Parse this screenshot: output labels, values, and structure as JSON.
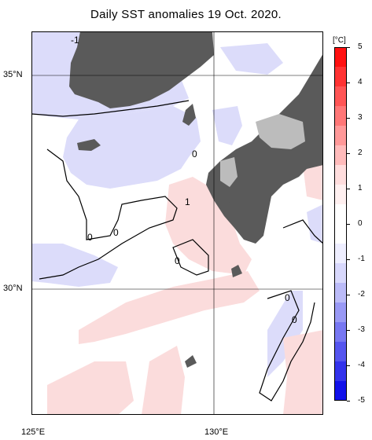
{
  "title": "Daily SST anomalies 19 Oct. 2020.",
  "lat_labels": [
    {
      "text": "35°N",
      "id": "lat-35"
    },
    {
      "text": "30°N",
      "id": "lat-30"
    }
  ],
  "lon_labels": [
    {
      "text": "125°E",
      "id": "lon-125"
    },
    {
      "text": "130°E",
      "id": "lon-130"
    }
  ],
  "contour_labels": [
    "-1",
    "0",
    "0",
    "0",
    "1",
    "0",
    "0",
    "0"
  ],
  "colorbar": {
    "unit": "[°C]",
    "ticks": [
      "5",
      "4",
      "3",
      "2",
      "1",
      "0",
      "-1",
      "-2",
      "-3",
      "-4",
      "-5"
    ],
    "colors_top_to_bottom": [
      "#ff1111",
      "#ff3333",
      "#ff5555",
      "#ff7777",
      "#ff9999",
      "#ffbbbb",
      "#ffdddd",
      "#fff0f0",
      "#ffffff",
      "#ffffff",
      "#eeeeff",
      "#d8d8fc",
      "#bbbbf8",
      "#9999f5",
      "#7777f2",
      "#5555ef",
      "#3333ec",
      "#1111ea"
    ]
  },
  "colors": {
    "land": "#5a5a5a",
    "land_light": "#bcbcbc",
    "warm_anomaly": "#fbdcdc",
    "cool_anomaly": "#dcdcfa",
    "grid": "#000000"
  }
}
